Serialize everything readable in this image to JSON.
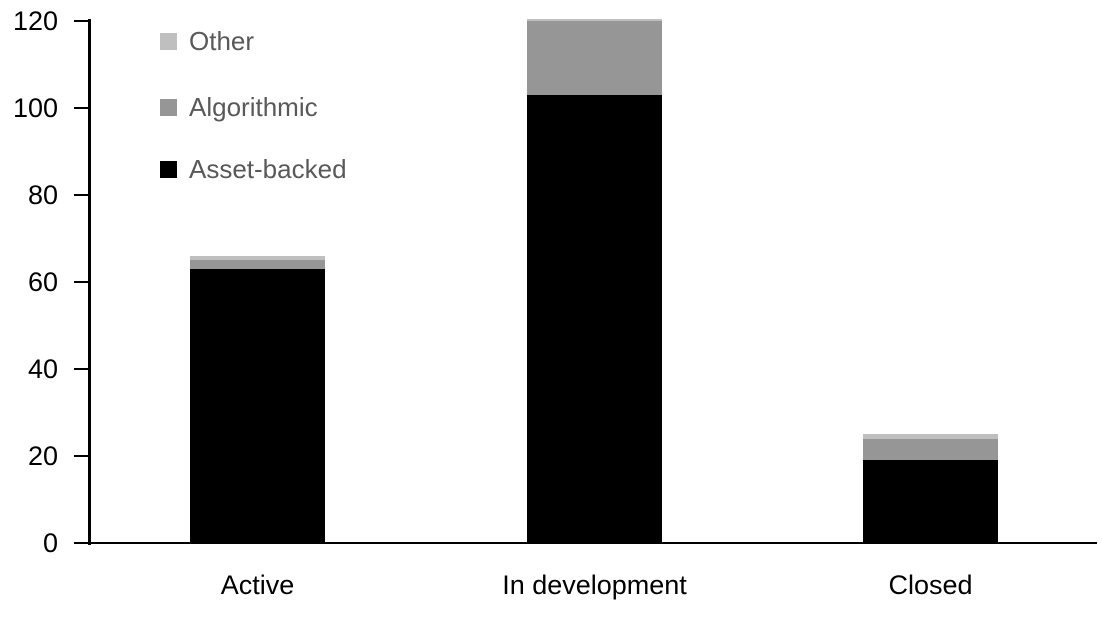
{
  "chart_data": {
    "type": "bar",
    "stacked": true,
    "title": "",
    "xlabel": "",
    "ylabel": "",
    "categories": [
      "Active",
      "In development",
      "Closed"
    ],
    "series": [
      {
        "name": "Asset-backed",
        "color": "#000000",
        "values": [
          63,
          103,
          19
        ]
      },
      {
        "name": "Algorithmic",
        "color": "#969696",
        "values": [
          2,
          17,
          5
        ]
      },
      {
        "name": "Other",
        "color": "#bfbfbf",
        "values": [
          1,
          0.5,
          1
        ]
      }
    ],
    "totals": [
      66,
      120.5,
      25
    ],
    "y_ticks": [
      0,
      20,
      40,
      60,
      80,
      100,
      120
    ],
    "ylim": [
      0,
      120
    ],
    "grid": false,
    "legend_position": "top-left",
    "legend_order": [
      "Other",
      "Algorithmic",
      "Asset-backed"
    ],
    "colors": {
      "axis": "#000000",
      "tick_label": "#000000",
      "category_label": "#000000",
      "legend_text": "#595959",
      "background": "#ffffff"
    }
  }
}
